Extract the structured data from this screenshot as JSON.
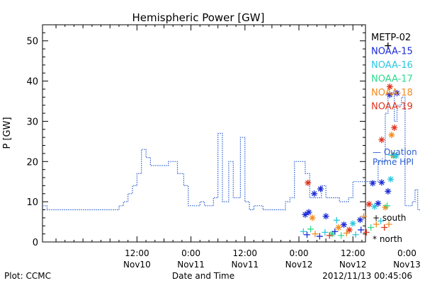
{
  "chart_data": {
    "type": "scatter",
    "title": "Hemispheric Power [GW]",
    "ylabel": "P [GW]",
    "xlabel": "Date and Time",
    "ylim": [
      0,
      54
    ],
    "xlim_hours": [
      -34.5,
      1.4
    ],
    "y_ticks": [
      0,
      10,
      20,
      30,
      40,
      50
    ],
    "x_ticks": [
      {
        "hour": -24,
        "line1": "12:00",
        "line2": "Nov10"
      },
      {
        "hour": -18,
        "line1": "0:00",
        "line2": "Nov11"
      },
      {
        "hour": -12,
        "line1": "12:00",
        "line2": "Nov11"
      },
      {
        "hour": -6,
        "line1": "0:00",
        "line2": "Nov12"
      },
      {
        "hour": 0,
        "line1": "12:00",
        "line2": "Nov12"
      },
      {
        "hour": 6,
        "line1": "0:00",
        "line2": "Nov13"
      }
    ],
    "legend": {
      "placement": "right",
      "entries": [
        {
          "name": "METP-02",
          "color": "#000000"
        },
        {
          "name": "NOAA-15",
          "color": "#1a2ad6"
        },
        {
          "name": "NOAA-16",
          "color": "#2ac7e0"
        },
        {
          "name": "NOAA-17",
          "color": "#2edb8c"
        },
        {
          "name": "NOAA-18",
          "color": "#f28a1f"
        },
        {
          "name": "NOAA-19",
          "color": "#e0341e"
        }
      ],
      "ovation_label_1": "— Ovation",
      "ovation_label_2": "Prime HPI",
      "ovation_color": "#2a5fd0",
      "south_label": "+ south",
      "north_label": "* north"
    },
    "ovation_series": [
      [
        -34.5,
        9
      ],
      [
        -34.0,
        9
      ],
      [
        -34.0,
        8
      ],
      [
        -26.0,
        8
      ],
      [
        -26.0,
        9
      ],
      [
        -25.5,
        9
      ],
      [
        -25.5,
        10
      ],
      [
        -25.0,
        10
      ],
      [
        -25.0,
        12
      ],
      [
        -24.5,
        12
      ],
      [
        -24.5,
        14
      ],
      [
        -24.0,
        14
      ],
      [
        -24.0,
        17
      ],
      [
        -23.5,
        17
      ],
      [
        -23.5,
        23
      ],
      [
        -23.0,
        23
      ],
      [
        -23.0,
        21
      ],
      [
        -22.5,
        21
      ],
      [
        -22.5,
        19
      ],
      [
        -20.5,
        19
      ],
      [
        -20.5,
        20
      ],
      [
        -19.5,
        20
      ],
      [
        -19.5,
        17
      ],
      [
        -18.8,
        17
      ],
      [
        -18.8,
        14
      ],
      [
        -18.3,
        14
      ],
      [
        -18.3,
        9
      ],
      [
        -17.0,
        9
      ],
      [
        -17.0,
        10
      ],
      [
        -16.5,
        10
      ],
      [
        -16.5,
        9
      ],
      [
        -15.5,
        9
      ],
      [
        -15.5,
        11
      ],
      [
        -15.0,
        11
      ],
      [
        -15.0,
        27
      ],
      [
        -14.5,
        27
      ],
      [
        -14.5,
        10
      ],
      [
        -13.8,
        10
      ],
      [
        -13.8,
        20
      ],
      [
        -13.3,
        20
      ],
      [
        -13.3,
        11
      ],
      [
        -12.5,
        11
      ],
      [
        -12.5,
        26
      ],
      [
        -12.0,
        26
      ],
      [
        -12.0,
        10
      ],
      [
        -11.5,
        10
      ],
      [
        -11.5,
        8
      ],
      [
        -11.0,
        8
      ],
      [
        -11.0,
        9
      ],
      [
        -10.0,
        9
      ],
      [
        -10.0,
        8
      ],
      [
        -7.5,
        8
      ],
      [
        -7.5,
        10
      ],
      [
        -7.0,
        10
      ],
      [
        -7.0,
        11
      ],
      [
        -6.5,
        11
      ],
      [
        -6.5,
        20
      ],
      [
        -5.3,
        20
      ],
      [
        -5.3,
        17
      ],
      [
        -4.8,
        17
      ],
      [
        -4.8,
        11
      ],
      [
        -3.5,
        11
      ],
      [
        -3.5,
        14
      ],
      [
        -3.0,
        14
      ],
      [
        -3.0,
        11
      ],
      [
        -1.5,
        11
      ],
      [
        -1.5,
        10
      ],
      [
        -0.5,
        10
      ],
      [
        -0.5,
        11
      ],
      [
        0.0,
        11
      ],
      [
        0.0,
        15
      ],
      [
        1.3,
        15
      ],
      [
        1.3,
        15
      ]
    ],
    "ovation_series_2": [
      [
        1.3,
        15
      ],
      [
        2.8,
        15
      ],
      [
        2.8,
        20
      ],
      [
        3.6,
        20
      ],
      [
        3.6,
        32
      ],
      [
        3.9,
        32
      ],
      [
        3.9,
        37
      ],
      [
        4.6,
        37
      ],
      [
        4.6,
        30
      ],
      [
        4.9,
        30
      ],
      [
        4.9,
        34
      ],
      [
        5.4,
        34
      ],
      [
        5.4,
        36
      ],
      [
        5.8,
        36
      ],
      [
        5.8,
        9
      ],
      [
        6.6,
        9
      ],
      [
        6.6,
        10
      ],
      [
        6.9,
        10
      ],
      [
        6.9,
        13
      ],
      [
        7.2,
        13
      ],
      [
        7.2,
        8
      ],
      [
        7.5,
        8
      ]
    ],
    "north_points": [
      {
        "hour": -5.3,
        "y": 6.8,
        "sat": "NOAA-15"
      },
      {
        "hour": -4.9,
        "y": 7.4,
        "sat": "NOAA-15"
      },
      {
        "hour": -4.3,
        "y": 12.0,
        "sat": "NOAA-15"
      },
      {
        "hour": -3.6,
        "y": 13.2,
        "sat": "NOAA-15"
      },
      {
        "hour": -3.0,
        "y": 6.4,
        "sat": "NOAA-15"
      },
      {
        "hour": 2.2,
        "y": 14.6,
        "sat": "NOAA-15"
      },
      {
        "hour": 3.2,
        "y": 14.8,
        "sat": "NOAA-15"
      },
      {
        "hour": 4.1,
        "y": 36.6,
        "sat": "NOAA-15"
      },
      {
        "hour": 4.9,
        "y": 37.0,
        "sat": "NOAA-15"
      },
      {
        "hour": 4.2,
        "y": 15.6,
        "sat": "NOAA-16"
      },
      {
        "hour": 4.6,
        "y": 21.5,
        "sat": "NOAA-17"
      },
      {
        "hour": 4.3,
        "y": 26.6,
        "sat": "NOAA-18"
      },
      {
        "hour": 4.1,
        "y": 38.6,
        "sat": "NOAA-19"
      },
      {
        "hour": 3.2,
        "y": 25.4,
        "sat": "NOAA-19"
      },
      {
        "hour": 4.6,
        "y": 28.4,
        "sat": "NOAA-19"
      },
      {
        "hour": -5.0,
        "y": 14.7,
        "sat": "NOAA-19"
      },
      {
        "hour": 4.5,
        "y": 21.5,
        "sat": "NOAA-18"
      },
      {
        "hour": 4.8,
        "y": 21.4,
        "sat": "NOAA-16"
      },
      {
        "hour": -4.5,
        "y": 6.0,
        "sat": "NOAA-18"
      },
      {
        "hour": -2.3,
        "y": 2.0,
        "sat": "NOAA-17"
      },
      {
        "hour": -1.6,
        "y": 3.6,
        "sat": "NOAA-18"
      },
      {
        "hour": -1.0,
        "y": 4.3,
        "sat": "NOAA-15"
      },
      {
        "hour": 0.0,
        "y": 4.6,
        "sat": "NOAA-16"
      },
      {
        "hour": 0.8,
        "y": 5.5,
        "sat": "NOAA-15"
      },
      {
        "hour": 1.8,
        "y": 9.4,
        "sat": "NOAA-19"
      },
      {
        "hour": 2.4,
        "y": 8.8,
        "sat": "NOAA-16"
      },
      {
        "hour": 2.8,
        "y": 9.6,
        "sat": "NOAA-15"
      },
      {
        "hour": 3.6,
        "y": 8.6,
        "sat": "NOAA-18"
      },
      {
        "hour": 3.9,
        "y": 12.6,
        "sat": "NOAA-15"
      },
      {
        "hour": -0.4,
        "y": 3.0,
        "sat": "NOAA-19"
      }
    ],
    "south_points": [
      {
        "hour": 3.9,
        "y": 48.8,
        "sat": "METP-02"
      },
      {
        "hour": -5.5,
        "y": 2.6,
        "sat": "NOAA-16"
      },
      {
        "hour": -5.1,
        "y": 1.8,
        "sat": "NOAA-15"
      },
      {
        "hour": -4.7,
        "y": 3.2,
        "sat": "NOAA-17"
      },
      {
        "hour": -4.2,
        "y": 2.0,
        "sat": "NOAA-18"
      },
      {
        "hour": -3.7,
        "y": 1.4,
        "sat": "NOAA-15"
      },
      {
        "hour": -3.1,
        "y": 2.4,
        "sat": "NOAA-16"
      },
      {
        "hour": -2.6,
        "y": 1.6,
        "sat": "NOAA-19"
      },
      {
        "hour": -2.0,
        "y": 2.6,
        "sat": "NOAA-15"
      },
      {
        "hour": -1.3,
        "y": 1.6,
        "sat": "NOAA-17"
      },
      {
        "hour": -0.7,
        "y": 2.2,
        "sat": "NOAA-18"
      },
      {
        "hour": 0.3,
        "y": 1.8,
        "sat": "NOAA-16"
      },
      {
        "hour": 0.9,
        "y": 3.0,
        "sat": "NOAA-15"
      },
      {
        "hour": 1.5,
        "y": 2.4,
        "sat": "NOAA-19"
      },
      {
        "hour": 2.0,
        "y": 3.6,
        "sat": "NOAA-17"
      },
      {
        "hour": 2.6,
        "y": 4.4,
        "sat": "NOAA-18"
      },
      {
        "hour": 3.1,
        "y": 5.2,
        "sat": "NOAA-16"
      },
      {
        "hour": 3.5,
        "y": 3.6,
        "sat": "NOAA-19"
      },
      {
        "hour": 3.8,
        "y": 9.0,
        "sat": "NOAA-17"
      },
      {
        "hour": 4.3,
        "y": 21.6,
        "sat": "NOAA-16"
      },
      {
        "hour": 4.0,
        "y": 4.4,
        "sat": "NOAA-18"
      },
      {
        "hour": -1.8,
        "y": 5.4,
        "sat": "NOAA-16"
      },
      {
        "hour": 1.2,
        "y": 6.4,
        "sat": "NOAA-18"
      }
    ]
  },
  "footer": {
    "plot_source": "Plot: CCMC",
    "timestamp": "2012/11/13 00:45:06"
  }
}
